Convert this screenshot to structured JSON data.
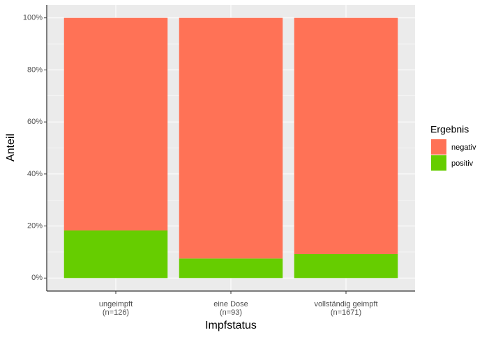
{
  "chart_data": {
    "type": "stacked_bar",
    "x_label": "Impfstatus",
    "y_label": "Anteil",
    "categories": [
      [
        "ungeimpft",
        "(n=126)"
      ],
      [
        "eine Dose",
        "(n=93)"
      ],
      [
        "vollständig geimpft",
        "(n=1671)"
      ]
    ],
    "series": [
      {
        "name": "negativ",
        "color": "#ff7256",
        "values": [
          81.7,
          92.5,
          90.8
        ]
      },
      {
        "name": "positiv",
        "color": "#66cd00",
        "values": [
          18.3,
          7.5,
          9.2
        ]
      }
    ],
    "ylim": [
      -5,
      105
    ],
    "yticks": [
      {
        "value": 0,
        "label": "0%"
      },
      {
        "value": 20,
        "label": "20%"
      },
      {
        "value": 40,
        "label": "40%"
      },
      {
        "value": 60,
        "label": "60%"
      },
      {
        "value": 80,
        "label": "80%"
      },
      {
        "value": 100,
        "label": "100%"
      }
    ],
    "grid": true,
    "legend_title": "Ergebnis",
    "legend_position": "right"
  }
}
